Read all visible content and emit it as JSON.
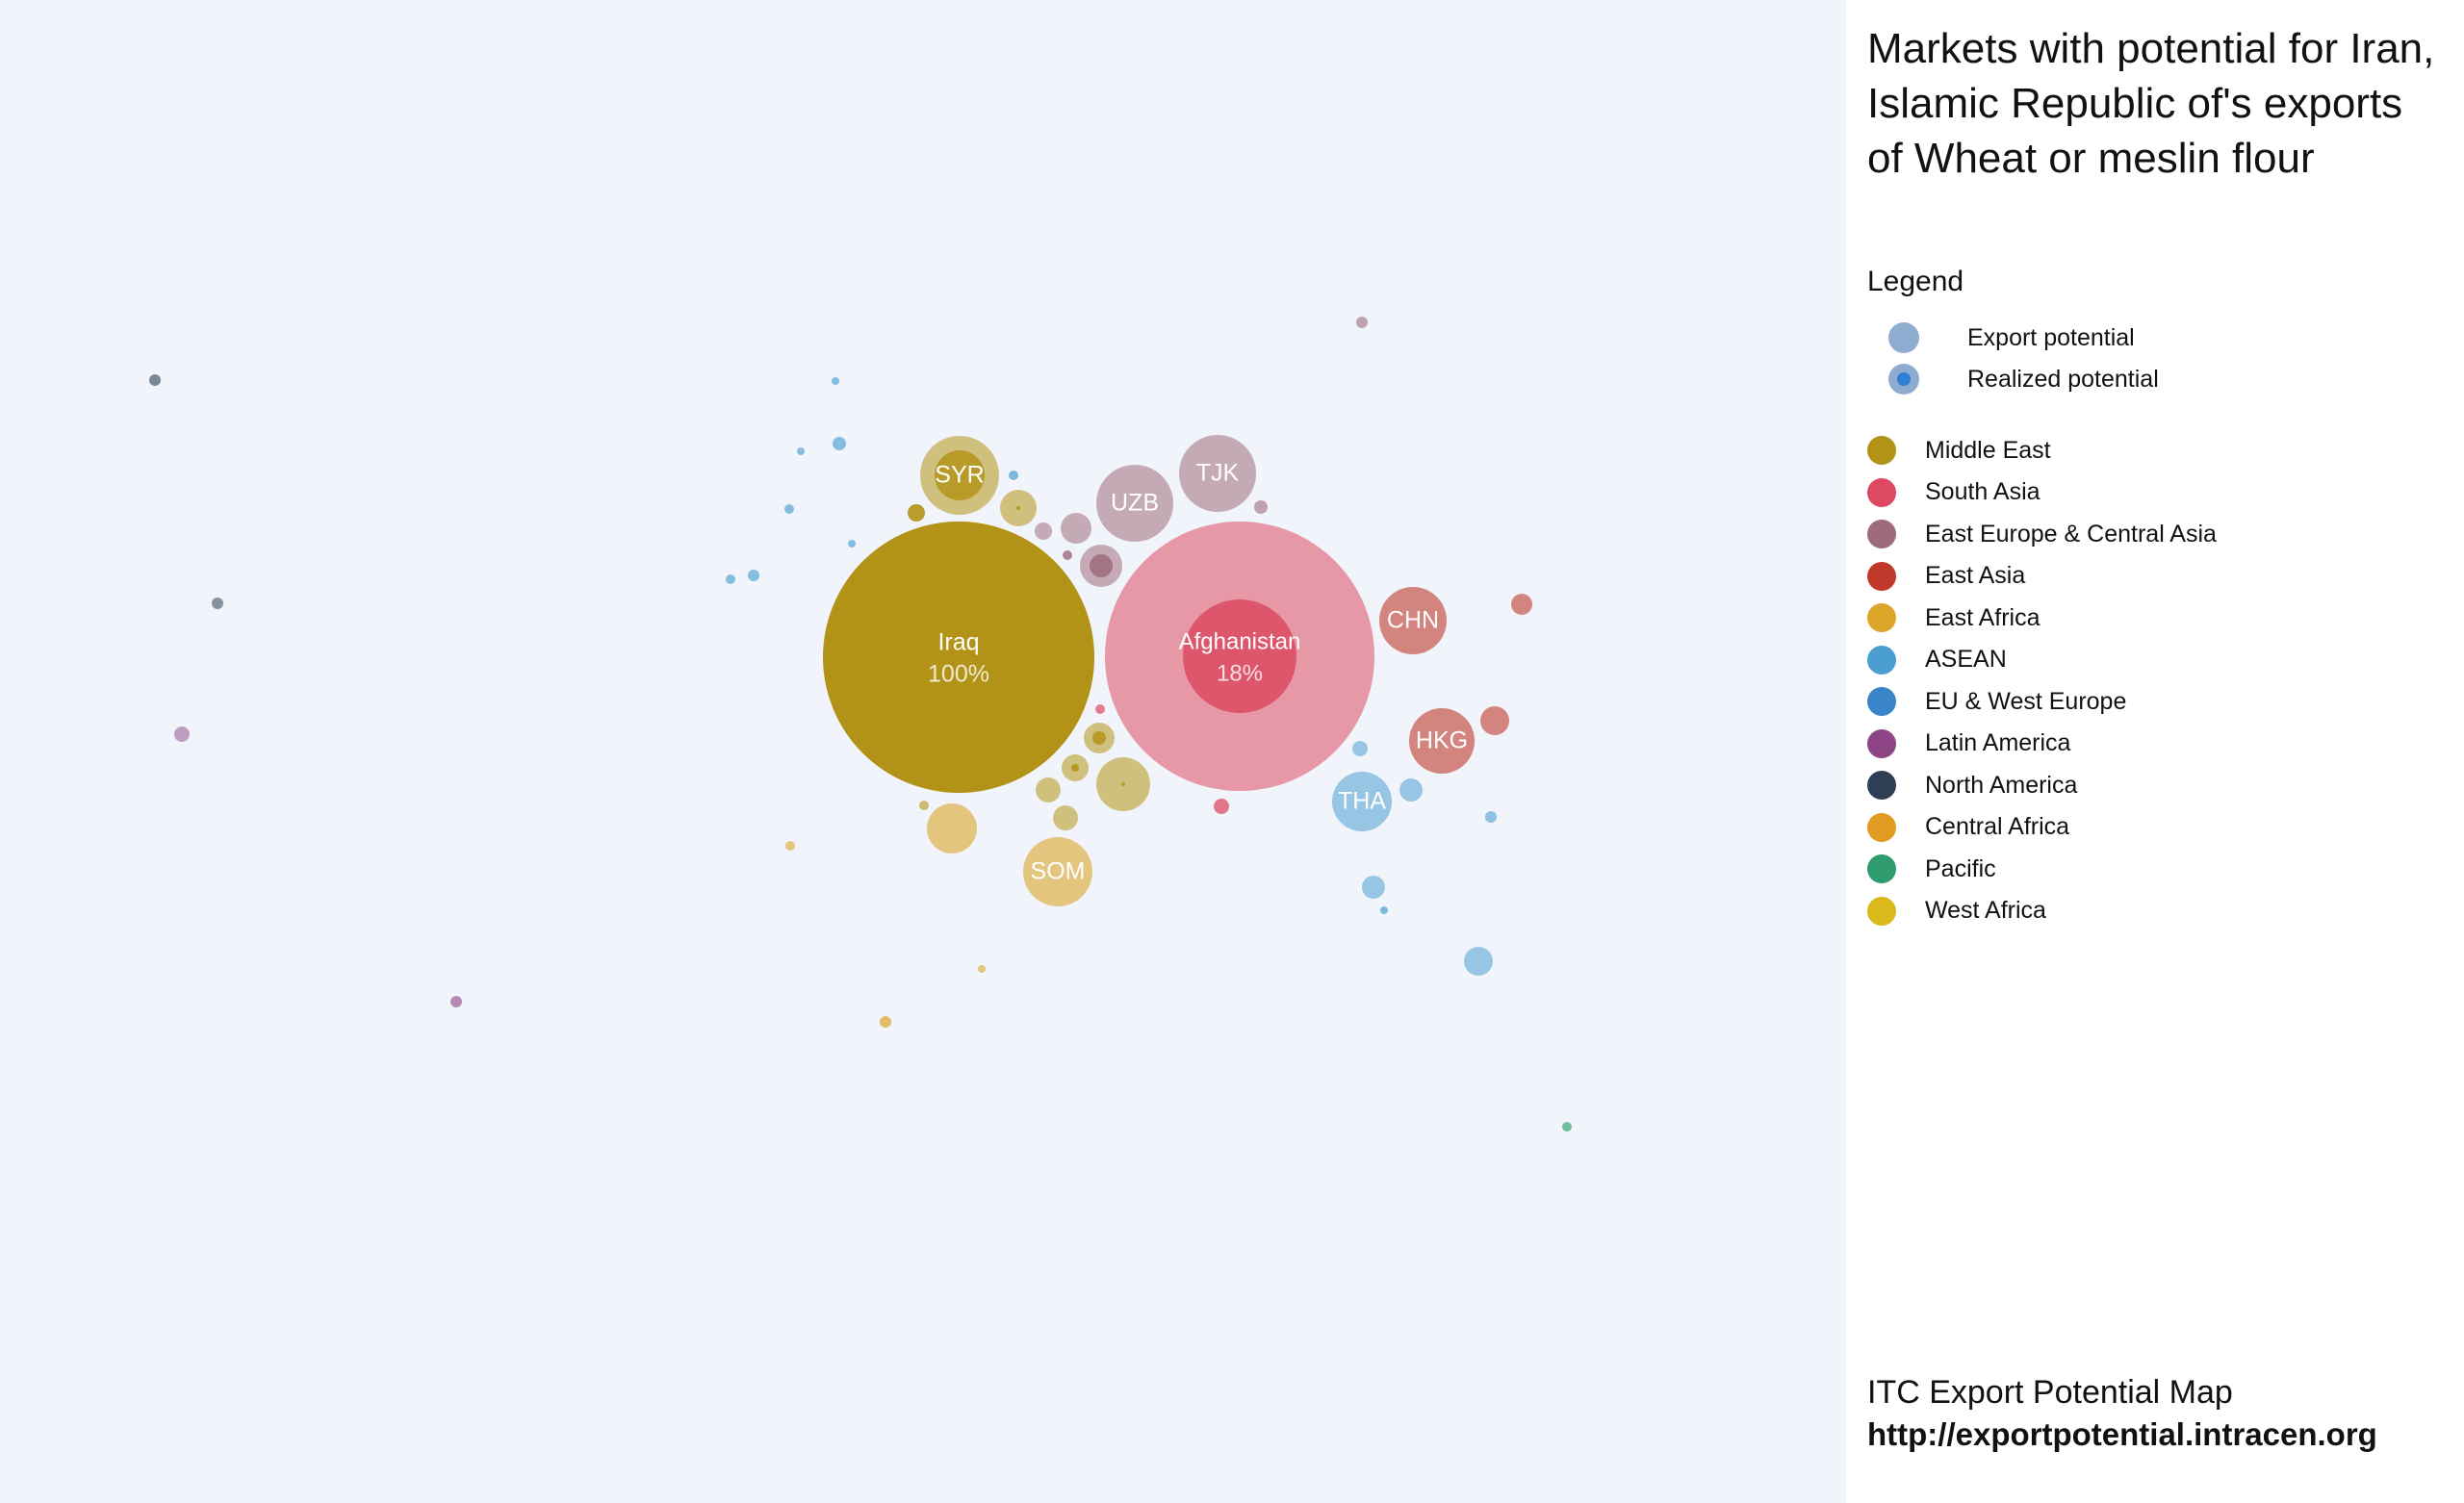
{
  "title": "Markets with potential for Iran, Islamic Republic of's exports of Wheat or meslin flour",
  "legend": {
    "heading": "Legend",
    "potential_items": [
      {
        "label": "Export potential",
        "icon": "export-potential-icon"
      },
      {
        "label": "Realized potential",
        "icon": "realized-potential-icon"
      }
    ],
    "regions": [
      {
        "label": "Middle East",
        "color": "#b39317"
      },
      {
        "label": "South Asia",
        "color": "#dc4a61"
      },
      {
        "label": "East Europe & Central Asia",
        "color": "#9e6b7b"
      },
      {
        "label": "East Asia",
        "color": "#c0392b"
      },
      {
        "label": "East Africa",
        "color": "#dca52a"
      },
      {
        "label": "ASEAN",
        "color": "#4a9ed0"
      },
      {
        "label": "EU & West Europe",
        "color": "#3a84c8"
      },
      {
        "label": "Latin America",
        "color": "#8e4585"
      },
      {
        "label": "North America",
        "color": "#2d3e55"
      },
      {
        "label": "Central Africa",
        "color": "#e09b20"
      },
      {
        "label": "Pacific",
        "color": "#2e9c6e"
      },
      {
        "label": "West Africa",
        "color": "#dcb91a"
      }
    ]
  },
  "footer": {
    "name": "ITC Export Potential Map",
    "url": "http://exportpotential.intracen.org"
  },
  "chart_data": {
    "type": "bubble",
    "size_meaning": "export potential; inner circle = realized potential",
    "labeled_markets": [
      {
        "label": "Iraq",
        "sub": "100%",
        "region": "Middle East",
        "realized_pct": 100
      },
      {
        "label": "Afghanistan",
        "sub": "18%",
        "region": "South Asia",
        "realized_pct": 18
      },
      {
        "label": "SYR",
        "sub": "",
        "region": "Middle East"
      },
      {
        "label": "UZB",
        "sub": "",
        "region": "East Europe & Central Asia"
      },
      {
        "label": "TJK",
        "sub": "",
        "region": "East Europe & Central Asia"
      },
      {
        "label": "CHN",
        "sub": "",
        "region": "East Asia"
      },
      {
        "label": "HKG",
        "sub": "",
        "region": "East Asia"
      },
      {
        "label": "THA",
        "sub": "",
        "region": "ASEAN"
      },
      {
        "label": "SOM",
        "sub": "",
        "region": "East Africa"
      }
    ]
  }
}
